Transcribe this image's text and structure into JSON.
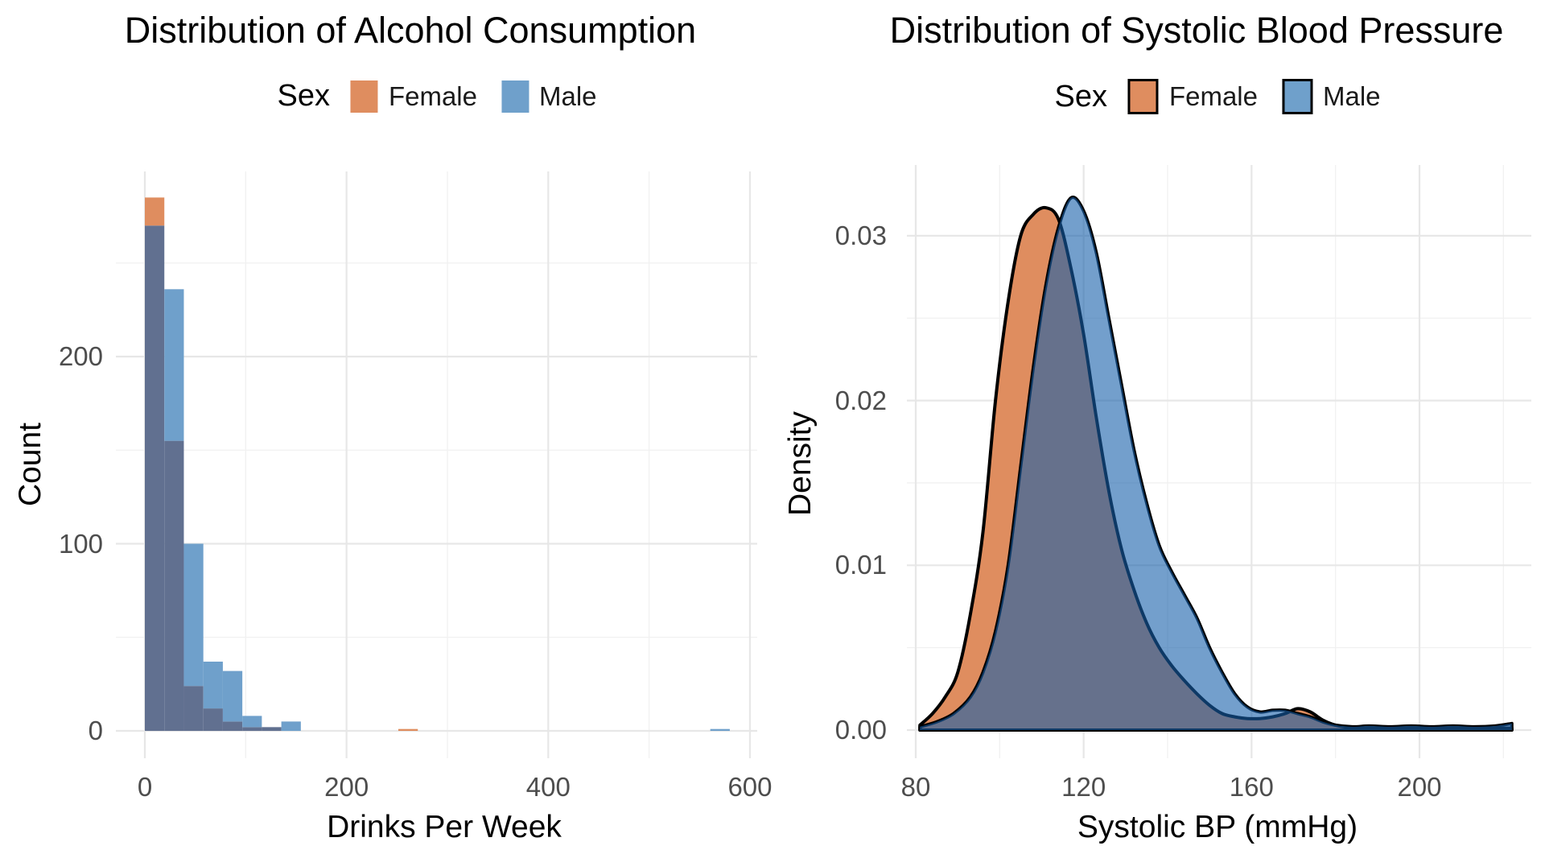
{
  "palette": {
    "female_solid": "#DF8D5F",
    "male_solid": "#6FA0CB",
    "overlap": "#617090",
    "male_fill_rgba": "rgba(21,95,170,0.60)",
    "outline": "#000000",
    "grid_major": "#E7E7E7",
    "grid_minor": "#F1F1F1",
    "tick_text": "#4D4D4D"
  },
  "chart_data": [
    {
      "type": "bar",
      "variant": "overlaid-histogram",
      "title": "Distribution of Alcohol Consumption",
      "xlabel": "Drinks Per Week",
      "ylabel": "Count",
      "grid": true,
      "legend": {
        "title": "Sex",
        "position": "top",
        "items": [
          {
            "label": "Female",
            "color": "#DF8D5F"
          },
          {
            "label": "Male",
            "color": "#6FA0CB"
          }
        ]
      },
      "xlim": [
        -29,
        607
      ],
      "ylim": [
        0,
        299
      ],
      "bin_start": 0,
      "bin_width": 19.3333,
      "x_ticks": [
        {
          "v": 0,
          "label": "0"
        },
        {
          "v": 200,
          "label": "200"
        },
        {
          "v": 400,
          "label": "400"
        },
        {
          "v": 600,
          "label": "600"
        }
      ],
      "x_minor": [
        100,
        300,
        500
      ],
      "y_ticks": [
        {
          "v": 0,
          "label": "0"
        },
        {
          "v": 100,
          "label": "100"
        },
        {
          "v": 200,
          "label": "200"
        }
      ],
      "y_minor": [
        50,
        150,
        250
      ],
      "series": [
        {
          "name": "Female",
          "counts": [
            285,
            155,
            24,
            12,
            5,
            2,
            2,
            0,
            0,
            0,
            0,
            0,
            0,
            1,
            0,
            0,
            0,
            0,
            0,
            0,
            0,
            0,
            0,
            0,
            0,
            0,
            0,
            0,
            0,
            0
          ]
        },
        {
          "name": "Male",
          "counts": [
            270,
            236,
            100,
            37,
            32,
            8,
            2,
            5,
            0,
            0,
            0,
            0,
            0,
            0,
            0,
            0,
            0,
            0,
            0,
            0,
            0,
            0,
            0,
            0,
            0,
            0,
            0,
            0,
            0,
            1
          ]
        }
      ]
    },
    {
      "type": "area",
      "variant": "density",
      "title": "Distribution of Systolic Blood Pressure",
      "xlabel": "Systolic BP (mmHg)",
      "ylabel": "Density",
      "grid": true,
      "legend": {
        "title": "Sex",
        "position": "top",
        "items": [
          {
            "label": "Female",
            "color": "#DF8D5F"
          },
          {
            "label": "Male",
            "color": "#6FA0CB"
          }
        ]
      },
      "xlim": [
        77.9,
        226.6
      ],
      "ylim": [
        0,
        0.0343
      ],
      "x_ticks": [
        {
          "v": 80,
          "label": "80"
        },
        {
          "v": 120,
          "label": "120"
        },
        {
          "v": 160,
          "label": "160"
        },
        {
          "v": 200,
          "label": "200"
        }
      ],
      "x_minor": [
        100,
        140,
        180,
        220
      ],
      "y_ticks": [
        {
          "v": 0,
          "label": "0.00"
        },
        {
          "v": 0.01,
          "label": "0.01"
        },
        {
          "v": 0.02,
          "label": "0.02"
        },
        {
          "v": 0.03,
          "label": "0.03"
        }
      ],
      "y_minor": [
        0.005,
        0.015,
        0.025
      ],
      "series": [
        {
          "name": "Female",
          "points": [
            [
              81,
              0.0003
            ],
            [
              84,
              0.001
            ],
            [
              87,
              0.002
            ],
            [
              90,
              0.0035
            ],
            [
              93,
              0.007
            ],
            [
              96,
              0.012
            ],
            [
              99,
              0.02
            ],
            [
              102,
              0.026
            ],
            [
              105,
              0.03
            ],
            [
              108,
              0.0313
            ],
            [
              111,
              0.0317
            ],
            [
              114,
              0.031
            ],
            [
              117,
              0.028
            ],
            [
              120,
              0.024
            ],
            [
              123,
              0.019
            ],
            [
              126,
              0.0145
            ],
            [
              129,
              0.011
            ],
            [
              132,
              0.0085
            ],
            [
              135,
              0.0065
            ],
            [
              138,
              0.005
            ],
            [
              141,
              0.0039
            ],
            [
              144,
              0.003
            ],
            [
              147,
              0.0022
            ],
            [
              150,
              0.0015
            ],
            [
              153,
              0.001
            ],
            [
              156,
              0.0008
            ],
            [
              159,
              0.0007
            ],
            [
              162,
              0.0007
            ],
            [
              165,
              0.0008
            ],
            [
              168,
              0.001
            ],
            [
              171,
              0.0013
            ],
            [
              174,
              0.0011
            ],
            [
              177,
              0.0006
            ],
            [
              180,
              0.0003
            ],
            [
              184,
              0.00015
            ],
            [
              190,
              0.0001
            ],
            [
              196,
              0.0001
            ],
            [
              203,
              0.0001
            ],
            [
              210,
              0.0001
            ],
            [
              216,
              0.0001
            ],
            [
              222,
              0.00012
            ]
          ]
        },
        {
          "name": "Male",
          "points": [
            [
              81,
              0.0002
            ],
            [
              85,
              0.0005
            ],
            [
              89,
              0.001
            ],
            [
              93,
              0.002
            ],
            [
              96,
              0.0035
            ],
            [
              99,
              0.006
            ],
            [
              102,
              0.01
            ],
            [
              105,
              0.016
            ],
            [
              108,
              0.022
            ],
            [
              111,
              0.027
            ],
            [
              114,
              0.0305
            ],
            [
              117,
              0.0323
            ],
            [
              120,
              0.0315
            ],
            [
              123,
              0.029
            ],
            [
              126,
              0.025
            ],
            [
              129,
              0.021
            ],
            [
              132,
              0.017
            ],
            [
              135,
              0.0138
            ],
            [
              138,
              0.0112
            ],
            [
              141,
              0.0096
            ],
            [
              144,
              0.0082
            ],
            [
              147,
              0.0068
            ],
            [
              150,
              0.005
            ],
            [
              153,
              0.0035
            ],
            [
              156,
              0.0022
            ],
            [
              159,
              0.0014
            ],
            [
              162,
              0.0011
            ],
            [
              165,
              0.0012
            ],
            [
              168,
              0.0012
            ],
            [
              171,
              0.001
            ],
            [
              174,
              0.0008
            ],
            [
              177,
              0.0005
            ],
            [
              180,
              0.0003
            ],
            [
              184,
              0.0002
            ],
            [
              188,
              0.00025
            ],
            [
              193,
              0.0002
            ],
            [
              198,
              0.00025
            ],
            [
              203,
              0.0002
            ],
            [
              208,
              0.00025
            ],
            [
              213,
              0.0002
            ],
            [
              218,
              0.00025
            ],
            [
              222,
              0.0004
            ]
          ]
        }
      ]
    }
  ]
}
